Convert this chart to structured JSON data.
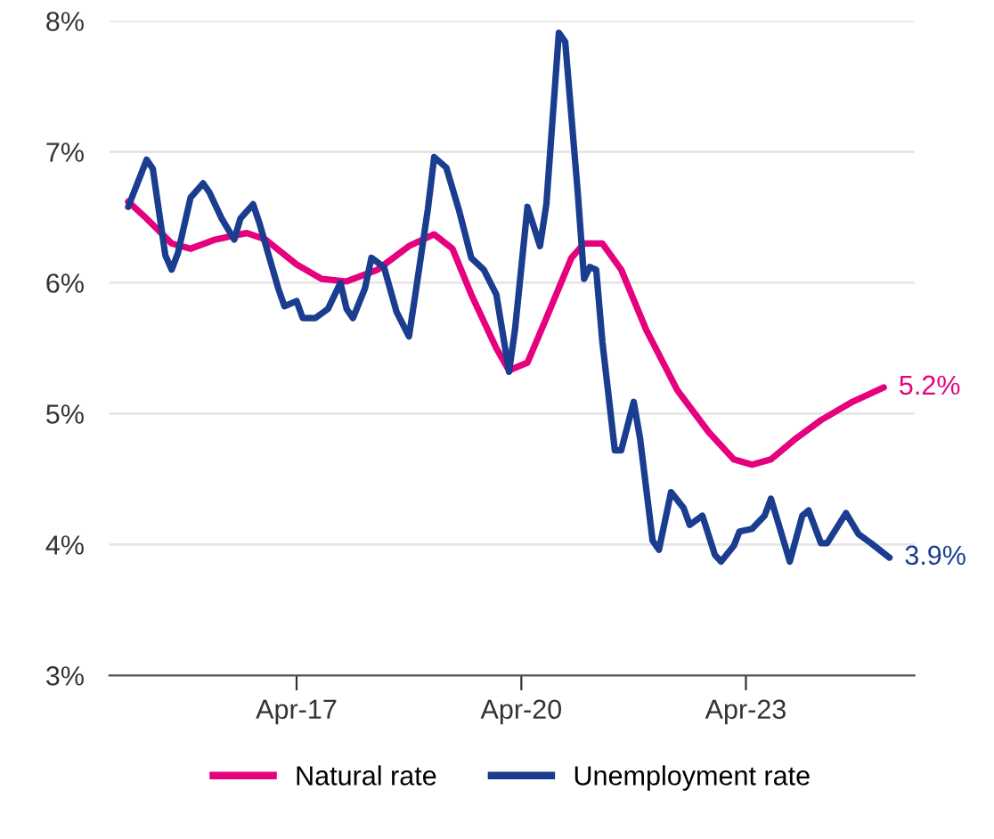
{
  "chart_data": {
    "type": "line",
    "xlim": [
      "2014-10",
      "2025-07"
    ],
    "xticks": [
      {
        "value": "2017-04",
        "label": "Apr-17"
      },
      {
        "value": "2020-04",
        "label": "Apr-20"
      },
      {
        "value": "2023-04",
        "label": "Apr-23"
      }
    ],
    "ylim": [
      3,
      8
    ],
    "yticks": [
      {
        "value": 3,
        "label": "3%"
      },
      {
        "value": 4,
        "label": "4%"
      },
      {
        "value": 5,
        "label": "5%"
      },
      {
        "value": 6,
        "label": "6%"
      },
      {
        "value": 7,
        "label": "7%"
      },
      {
        "value": 8,
        "label": "8%"
      }
    ],
    "grid": "y",
    "legend": "bottom",
    "line_style": "solid",
    "marker": "none",
    "series": [
      {
        "name": "Natural rate",
        "color": "#e6007e",
        "x": [
          "2015-01",
          "2015-04",
          "2015-08",
          "2015-11",
          "2016-03",
          "2016-08",
          "2016-11",
          "2017-04",
          "2017-08",
          "2017-12",
          "2018-05",
          "2018-10",
          "2019-02",
          "2019-05",
          "2019-08",
          "2019-12",
          "2020-02",
          "2020-05",
          "2020-08",
          "2020-12",
          "2021-02",
          "2021-05",
          "2021-08",
          "2021-12",
          "2022-05",
          "2022-10",
          "2023-02",
          "2023-05",
          "2023-08",
          "2023-12",
          "2024-04",
          "2024-09",
          "2025-02"
        ],
        "values": [
          6.62,
          6.49,
          6.3,
          6.26,
          6.33,
          6.38,
          6.33,
          6.14,
          6.03,
          6.01,
          6.1,
          6.28,
          6.37,
          6.26,
          5.91,
          5.5,
          5.33,
          5.39,
          5.73,
          6.19,
          6.3,
          6.3,
          6.1,
          5.64,
          5.18,
          4.86,
          4.65,
          4.61,
          4.65,
          4.81,
          4.95,
          5.09,
          5.2
        ],
        "value_labels": [
          null,
          null,
          null,
          null,
          null,
          null,
          null,
          null,
          null,
          null,
          null,
          null,
          null,
          null,
          null,
          null,
          null,
          null,
          null,
          null,
          null,
          null,
          null,
          null,
          null,
          null,
          null,
          null,
          null,
          null,
          null,
          null,
          "5.2%"
        ]
      },
      {
        "name": "Unemployment rate",
        "color": "#1a3d8f",
        "x": [
          "2015-01",
          "2015-04",
          "2015-05",
          "2015-07",
          "2015-08",
          "2015-09",
          "2015-11",
          "2016-01",
          "2016-02",
          "2016-04",
          "2016-06",
          "2016-07",
          "2016-09",
          "2016-10",
          "2017-01",
          "2017-02",
          "2017-04",
          "2017-05",
          "2017-07",
          "2017-09",
          "2017-11",
          "2017-12",
          "2018-01",
          "2018-03",
          "2018-04",
          "2018-06",
          "2018-08",
          "2018-10",
          "2018-11",
          "2019-01",
          "2019-02",
          "2019-04",
          "2019-06",
          "2019-08",
          "2019-10",
          "2019-12",
          "2020-02",
          "2020-03",
          "2020-05",
          "2020-07",
          "2020-08",
          "2020-10",
          "2020-11",
          "2021-01",
          "2021-02",
          "2021-03",
          "2021-04",
          "2021-05",
          "2021-07",
          "2021-08",
          "2021-10",
          "2021-11",
          "2022-01",
          "2022-02",
          "2022-04",
          "2022-06",
          "2022-07",
          "2022-09",
          "2022-11",
          "2022-12",
          "2023-02",
          "2023-03",
          "2023-05",
          "2023-07",
          "2023-08",
          "2023-09",
          "2023-11",
          "2024-01",
          "2024-02",
          "2024-04",
          "2024-05",
          "2024-08",
          "2024-10",
          "2024-12",
          "2025-03"
        ],
        "values": [
          6.58,
          6.94,
          6.87,
          6.21,
          6.1,
          6.23,
          6.65,
          6.76,
          6.69,
          6.49,
          6.33,
          6.49,
          6.6,
          6.46,
          5.96,
          5.82,
          5.86,
          5.73,
          5.73,
          5.8,
          6.0,
          5.8,
          5.73,
          5.96,
          6.19,
          6.12,
          5.78,
          5.59,
          5.91,
          6.56,
          6.96,
          6.88,
          6.56,
          6.19,
          6.1,
          5.91,
          5.32,
          5.64,
          6.58,
          6.28,
          6.6,
          7.91,
          7.84,
          6.69,
          6.03,
          6.12,
          6.1,
          5.55,
          4.72,
          4.72,
          5.09,
          4.81,
          4.03,
          3.96,
          4.4,
          4.28,
          4.15,
          4.22,
          3.92,
          3.87,
          3.99,
          4.1,
          4.12,
          4.22,
          4.35,
          4.19,
          3.87,
          4.22,
          4.26,
          4.01,
          4.01,
          4.24,
          4.08,
          4.01,
          3.9
        ],
        "value_labels": [
          null,
          null,
          null,
          null,
          null,
          null,
          null,
          null,
          null,
          null,
          null,
          null,
          null,
          null,
          null,
          null,
          null,
          null,
          null,
          null,
          null,
          null,
          null,
          null,
          null,
          null,
          null,
          null,
          null,
          null,
          null,
          null,
          null,
          null,
          null,
          null,
          null,
          null,
          null,
          null,
          null,
          null,
          null,
          null,
          null,
          null,
          null,
          null,
          null,
          null,
          null,
          null,
          null,
          null,
          null,
          null,
          null,
          null,
          null,
          null,
          null,
          null,
          null,
          null,
          null,
          null,
          null,
          null,
          null,
          null,
          null,
          null,
          null,
          null,
          "3.9%"
        ]
      }
    ]
  }
}
